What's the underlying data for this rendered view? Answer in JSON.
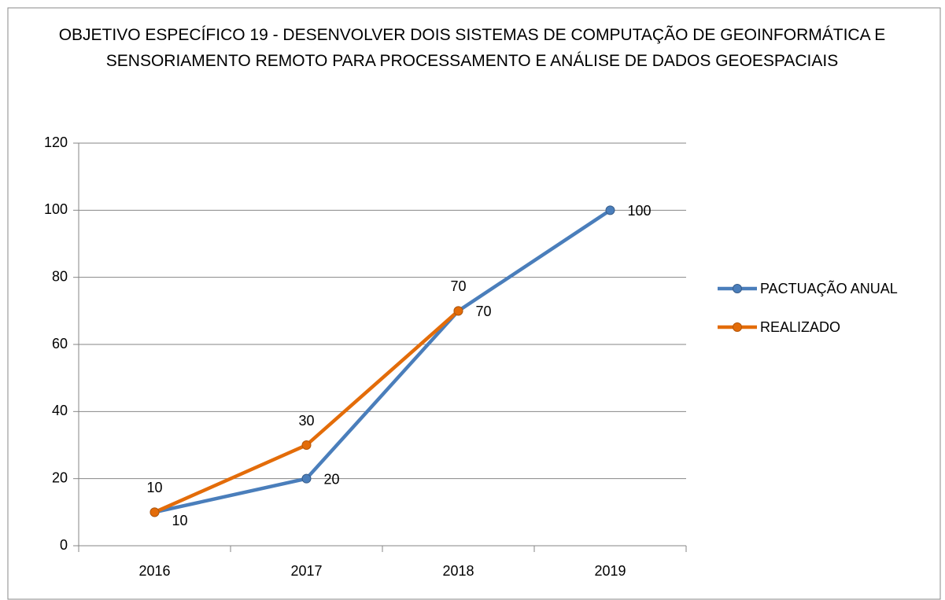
{
  "chart_data": {
    "type": "line",
    "title": "OBJETIVO ESPECÍFICO 19 -  DESENVOLVER DOIS SISTEMAS DE COMPUTAÇÃO DE GEOINFORMÁTICA E SENSORIAMENTO REMOTO PARA PROCESSAMENTO E ANÁLISE DE DADOS GEOESPACIAIS",
    "categories": [
      "2016",
      "2017",
      "2018",
      "2019"
    ],
    "series": [
      {
        "name": "PACTUAÇÃO ANUAL",
        "color": "#4a7ebb",
        "values": [
          10,
          20,
          70,
          100
        ]
      },
      {
        "name": "REALIZADO",
        "color": "#e36c09",
        "values": [
          10,
          30,
          70,
          null
        ]
      }
    ],
    "ylim": [
      0,
      120
    ],
    "yticks": [
      0,
      20,
      40,
      60,
      80,
      100,
      120
    ],
    "grid": true,
    "legend": "right"
  }
}
